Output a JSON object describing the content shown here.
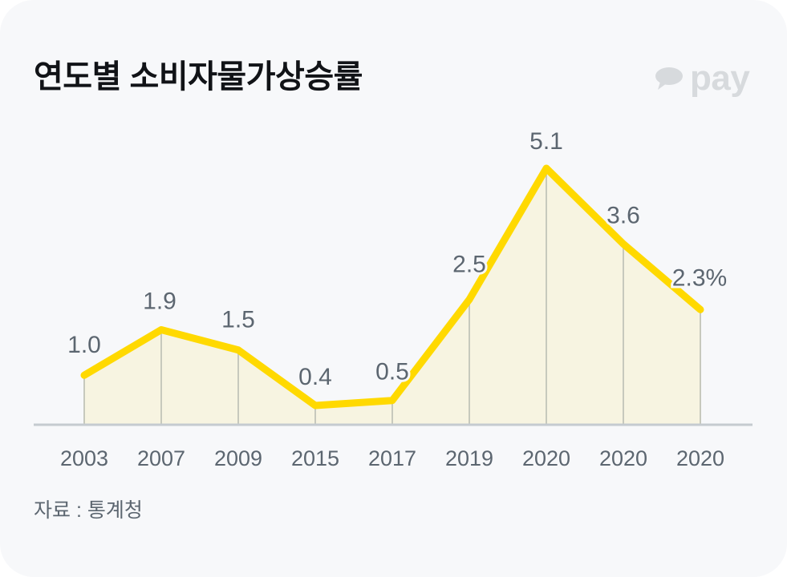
{
  "header": {
    "title": "연도별 소비자물가상승률",
    "brand": {
      "icon": "speech-bubble-icon",
      "text": "pay",
      "color": "#d7dadd"
    }
  },
  "footer": {
    "source": "자료 : 통계청"
  },
  "colors": {
    "card_background": "#f7f8fa",
    "line": "#ffd900",
    "area_fill": "#f7f4e1",
    "drop_lines": "#c7c9bd",
    "axis": "#c5cbd0",
    "label_text": "#5c6670",
    "title_text": "#111317"
  },
  "chart_data": {
    "type": "area",
    "title": "연도별 소비자물가상승률",
    "xlabel": "",
    "ylabel": "",
    "unit": "%",
    "categories": [
      "2003",
      "2007",
      "2009",
      "2015",
      "2017",
      "2019",
      "2020",
      "2020",
      "2020"
    ],
    "values": [
      1.0,
      1.9,
      1.5,
      0.4,
      0.5,
      2.5,
      5.1,
      3.6,
      2.3
    ],
    "data_labels": [
      "1.0",
      "1.9",
      "1.5",
      "0.4",
      "0.5",
      "2.5",
      "5.1",
      "3.6",
      "2.3%"
    ],
    "ylim": [
      0,
      5.1
    ],
    "grid": false,
    "legend": null,
    "annotations": [
      "자료 : 통계청"
    ]
  }
}
